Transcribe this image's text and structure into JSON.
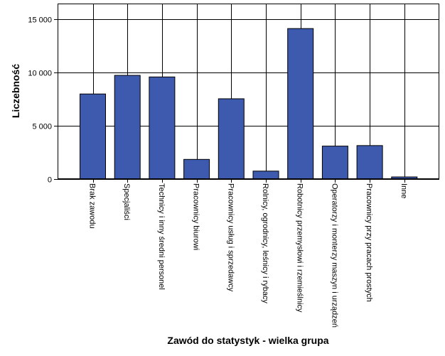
{
  "chart_data": {
    "type": "bar",
    "title": "",
    "xlabel": "Zawód do statystyk - wielka grupa",
    "ylabel": "Liczebność",
    "ylim": [
      0,
      16500
    ],
    "yticks": [
      0,
      5000,
      10000,
      15000
    ],
    "ytick_labels": [
      "0",
      "5 000",
      "10 000",
      "15 000"
    ],
    "grid": "both",
    "bar_color": "#3d5aae",
    "categories": [
      "Brak zawodu",
      "Specjaliści",
      "Technicy i inny średni personel",
      "Pracownicy biurowi",
      "Pracownicy usług i sprzedawcy",
      "Rolnicy, ogrodnicy, leśnicy i rybacy",
      "Robotnicy przemysłowi i rzemieślnicy",
      "Operatorzy i monterzy maszyn i urządzeń",
      "Pracownicy przy pracach prostych",
      "Inne"
    ],
    "values": [
      8000,
      9750,
      9600,
      1850,
      7550,
      750,
      14150,
      3100,
      3150,
      200
    ]
  }
}
